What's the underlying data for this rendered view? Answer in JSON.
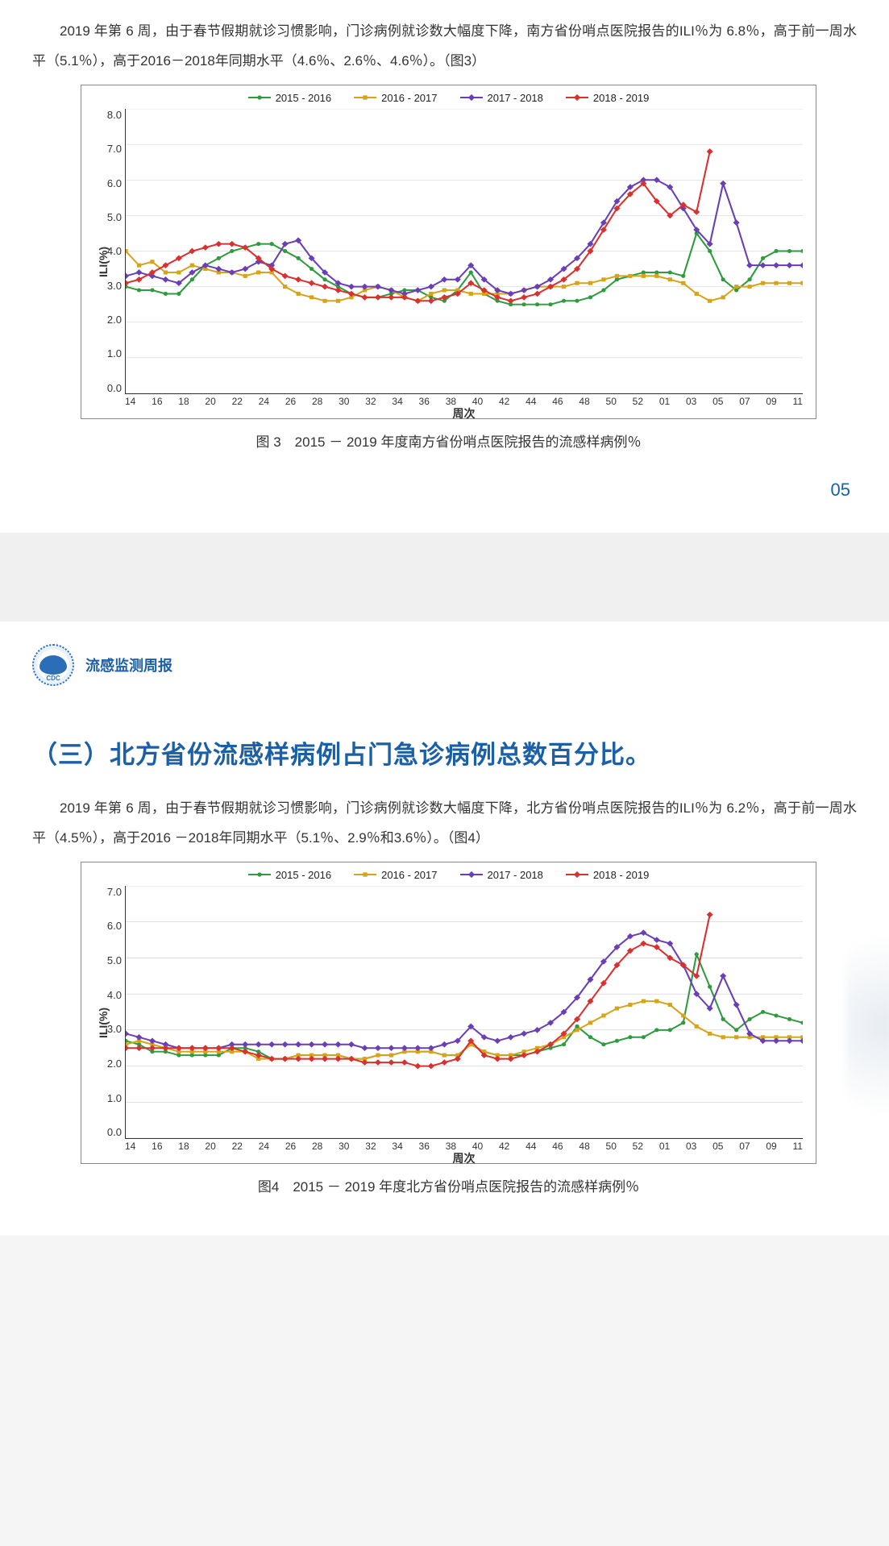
{
  "page1": {
    "para1": "2019 年第 6 周，由于春节假期就诊习惯影响，门诊病例就诊数大幅度下降，南方省份哨点医院报告的ILI％为 6.8％，高于前一周水平（5.1％），高于2016－2018年同期水平（4.6％、2.6％、4.6％）。（图3）",
    "chart": {
      "type": "line",
      "ylabel": "ILI(%)",
      "xlabel": "周次",
      "ylim": [
        0.0,
        8.0
      ],
      "yticks": [
        "0.0",
        "1.0",
        "2.0",
        "3.0",
        "4.0",
        "5.0",
        "6.0",
        "7.0",
        "8.0"
      ],
      "xticks": [
        "14",
        "16",
        "18",
        "20",
        "22",
        "24",
        "26",
        "28",
        "30",
        "32",
        "34",
        "36",
        "38",
        "40",
        "42",
        "44",
        "46",
        "48",
        "50",
        "52",
        "01",
        "03",
        "05",
        "07",
        "09",
        "11"
      ],
      "n_points": 52,
      "legend": [
        {
          "label": "2015 - 2016",
          "color": "#2e9b3f",
          "marker": "circle"
        },
        {
          "label": "2016 - 2017",
          "color": "#d6a319",
          "marker": "square"
        },
        {
          "label": "2017 - 2018",
          "color": "#6a3fb5",
          "marker": "diamond"
        },
        {
          "label": "2018 - 2019",
          "color": "#d93030",
          "marker": "diamond"
        }
      ],
      "colors": {
        "grid": "#cccccc",
        "axis": "#333333",
        "bg": "#ffffff"
      },
      "line_width": 2,
      "marker_size": 5,
      "series": {
        "s2015_2016": [
          3.0,
          2.9,
          2.9,
          2.8,
          2.8,
          3.2,
          3.6,
          3.8,
          4.0,
          4.1,
          4.2,
          4.2,
          4.0,
          3.8,
          3.5,
          3.2,
          3.0,
          2.8,
          2.7,
          2.7,
          2.8,
          2.9,
          2.9,
          2.7,
          2.6,
          2.9,
          3.4,
          2.8,
          2.6,
          2.5,
          2.5,
          2.5,
          2.5,
          2.6,
          2.6,
          2.7,
          2.9,
          3.2,
          3.3,
          3.4,
          3.4,
          3.4,
          3.3,
          4.5,
          4.0,
          3.2,
          2.9,
          3.2,
          3.8,
          4.0,
          4.0,
          4.0
        ],
        "s2016_2017": [
          4.0,
          3.6,
          3.7,
          3.4,
          3.4,
          3.6,
          3.5,
          3.4,
          3.4,
          3.3,
          3.4,
          3.4,
          3.0,
          2.8,
          2.7,
          2.6,
          2.6,
          2.7,
          2.9,
          3.0,
          2.9,
          2.7,
          2.6,
          2.8,
          2.9,
          2.9,
          2.8,
          2.8,
          2.8,
          2.8,
          2.9,
          3.0,
          3.0,
          3.0,
          3.1,
          3.1,
          3.2,
          3.3,
          3.3,
          3.3,
          3.3,
          3.2,
          3.1,
          2.8,
          2.6,
          2.7,
          3.0,
          3.0,
          3.1,
          3.1,
          3.1,
          3.1
        ],
        "s2017_2018": [
          3.3,
          3.4,
          3.3,
          3.2,
          3.1,
          3.4,
          3.6,
          3.5,
          3.4,
          3.5,
          3.7,
          3.6,
          4.2,
          4.3,
          3.8,
          3.4,
          3.1,
          3.0,
          3.0,
          3.0,
          2.9,
          2.8,
          2.9,
          3.0,
          3.2,
          3.2,
          3.6,
          3.2,
          2.9,
          2.8,
          2.9,
          3.0,
          3.2,
          3.5,
          3.8,
          4.2,
          4.8,
          5.4,
          5.8,
          6.0,
          6.0,
          5.8,
          5.2,
          4.6,
          4.2,
          5.9,
          4.8,
          3.6,
          3.6,
          3.6,
          3.6,
          3.6
        ],
        "s2018_2019": [
          3.1,
          3.2,
          3.4,
          3.6,
          3.8,
          4.0,
          4.1,
          4.2,
          4.2,
          4.1,
          3.8,
          3.5,
          3.3,
          3.2,
          3.1,
          3.0,
          2.9,
          2.8,
          2.7,
          2.7,
          2.7,
          2.7,
          2.6,
          2.6,
          2.7,
          2.8,
          3.1,
          2.9,
          2.7,
          2.6,
          2.7,
          2.8,
          3.0,
          3.2,
          3.5,
          4.0,
          4.6,
          5.2,
          5.6,
          5.9,
          5.4,
          5.0,
          5.3,
          5.1,
          6.8
        ]
      }
    },
    "caption": "图 3　2015 － 2019 年度南方省份哨点医院报告的流感样病例％",
    "page_number": "05"
  },
  "header": {
    "title": "流感监测周报"
  },
  "page2": {
    "section_title": "（三）北方省份流感样病例占门急诊病例总数百分比。",
    "para1": "2019 年第 6 周，由于春节假期就诊习惯影响，门诊病例就诊数大幅度下降，北方省份哨点医院报告的ILI％为 6.2％，高于前一周水平（4.5％），高于2016 －2018年同期水平（5.1％、2.9％和3.6％）。（图4）",
    "chart": {
      "type": "line",
      "ylabel": "ILI(%)",
      "xlabel": "周次",
      "ylim": [
        0.0,
        7.0
      ],
      "yticks": [
        "0.0",
        "1.0",
        "2.0",
        "3.0",
        "4.0",
        "5.0",
        "6.0",
        "7.0"
      ],
      "xticks": [
        "14",
        "16",
        "18",
        "20",
        "22",
        "24",
        "26",
        "28",
        "30",
        "32",
        "34",
        "36",
        "38",
        "40",
        "42",
        "44",
        "46",
        "48",
        "50",
        "52",
        "01",
        "03",
        "05",
        "07",
        "09",
        "11"
      ],
      "n_points": 52,
      "legend": [
        {
          "label": "2015 - 2016",
          "color": "#2e9b3f",
          "marker": "circle"
        },
        {
          "label": "2016 - 2017",
          "color": "#d6a319",
          "marker": "square"
        },
        {
          "label": "2017 - 2018",
          "color": "#6a3fb5",
          "marker": "diamond"
        },
        {
          "label": "2018 - 2019",
          "color": "#d93030",
          "marker": "diamond"
        }
      ],
      "colors": {
        "grid": "#cccccc",
        "axis": "#333333",
        "bg": "#ffffff"
      },
      "line_width": 2,
      "marker_size": 5,
      "series": {
        "s2015_2016": [
          2.7,
          2.6,
          2.4,
          2.4,
          2.3,
          2.3,
          2.3,
          2.3,
          2.5,
          2.5,
          2.4,
          2.2,
          2.2,
          2.3,
          2.3,
          2.3,
          2.3,
          2.2,
          2.2,
          2.3,
          2.3,
          2.4,
          2.4,
          2.4,
          2.3,
          2.3,
          2.6,
          2.4,
          2.3,
          2.3,
          2.3,
          2.4,
          2.5,
          2.6,
          3.1,
          2.8,
          2.6,
          2.7,
          2.8,
          2.8,
          3.0,
          3.0,
          3.2,
          5.1,
          4.2,
          3.3,
          3.0,
          3.3,
          3.5,
          3.4,
          3.3,
          3.2
        ],
        "s2016_2017": [
          2.6,
          2.7,
          2.6,
          2.5,
          2.4,
          2.4,
          2.4,
          2.4,
          2.4,
          2.4,
          2.2,
          2.2,
          2.2,
          2.3,
          2.3,
          2.3,
          2.3,
          2.2,
          2.2,
          2.3,
          2.3,
          2.4,
          2.4,
          2.4,
          2.3,
          2.3,
          2.6,
          2.4,
          2.3,
          2.3,
          2.4,
          2.5,
          2.6,
          2.8,
          3.0,
          3.2,
          3.4,
          3.6,
          3.7,
          3.8,
          3.8,
          3.7,
          3.4,
          3.1,
          2.9,
          2.8,
          2.8,
          2.8,
          2.8,
          2.8,
          2.8,
          2.8
        ],
        "s2017_2018": [
          2.9,
          2.8,
          2.7,
          2.6,
          2.5,
          2.5,
          2.5,
          2.5,
          2.6,
          2.6,
          2.6,
          2.6,
          2.6,
          2.6,
          2.6,
          2.6,
          2.6,
          2.6,
          2.5,
          2.5,
          2.5,
          2.5,
          2.5,
          2.5,
          2.6,
          2.7,
          3.1,
          2.8,
          2.7,
          2.8,
          2.9,
          3.0,
          3.2,
          3.5,
          3.9,
          4.4,
          4.9,
          5.3,
          5.6,
          5.7,
          5.5,
          5.4,
          4.8,
          4.0,
          3.6,
          4.5,
          3.7,
          2.9,
          2.7,
          2.7,
          2.7,
          2.7
        ],
        "s2018_2019": [
          2.5,
          2.5,
          2.5,
          2.5,
          2.5,
          2.5,
          2.5,
          2.5,
          2.5,
          2.4,
          2.3,
          2.2,
          2.2,
          2.2,
          2.2,
          2.2,
          2.2,
          2.2,
          2.1,
          2.1,
          2.1,
          2.1,
          2.0,
          2.0,
          2.1,
          2.2,
          2.7,
          2.3,
          2.2,
          2.2,
          2.3,
          2.4,
          2.6,
          2.9,
          3.3,
          3.8,
          4.3,
          4.8,
          5.2,
          5.4,
          5.3,
          5.0,
          4.8,
          4.5,
          6.2
        ]
      }
    },
    "caption": "图4　2015 － 2019 年度北方省份哨点医院报告的流感样病例％"
  }
}
